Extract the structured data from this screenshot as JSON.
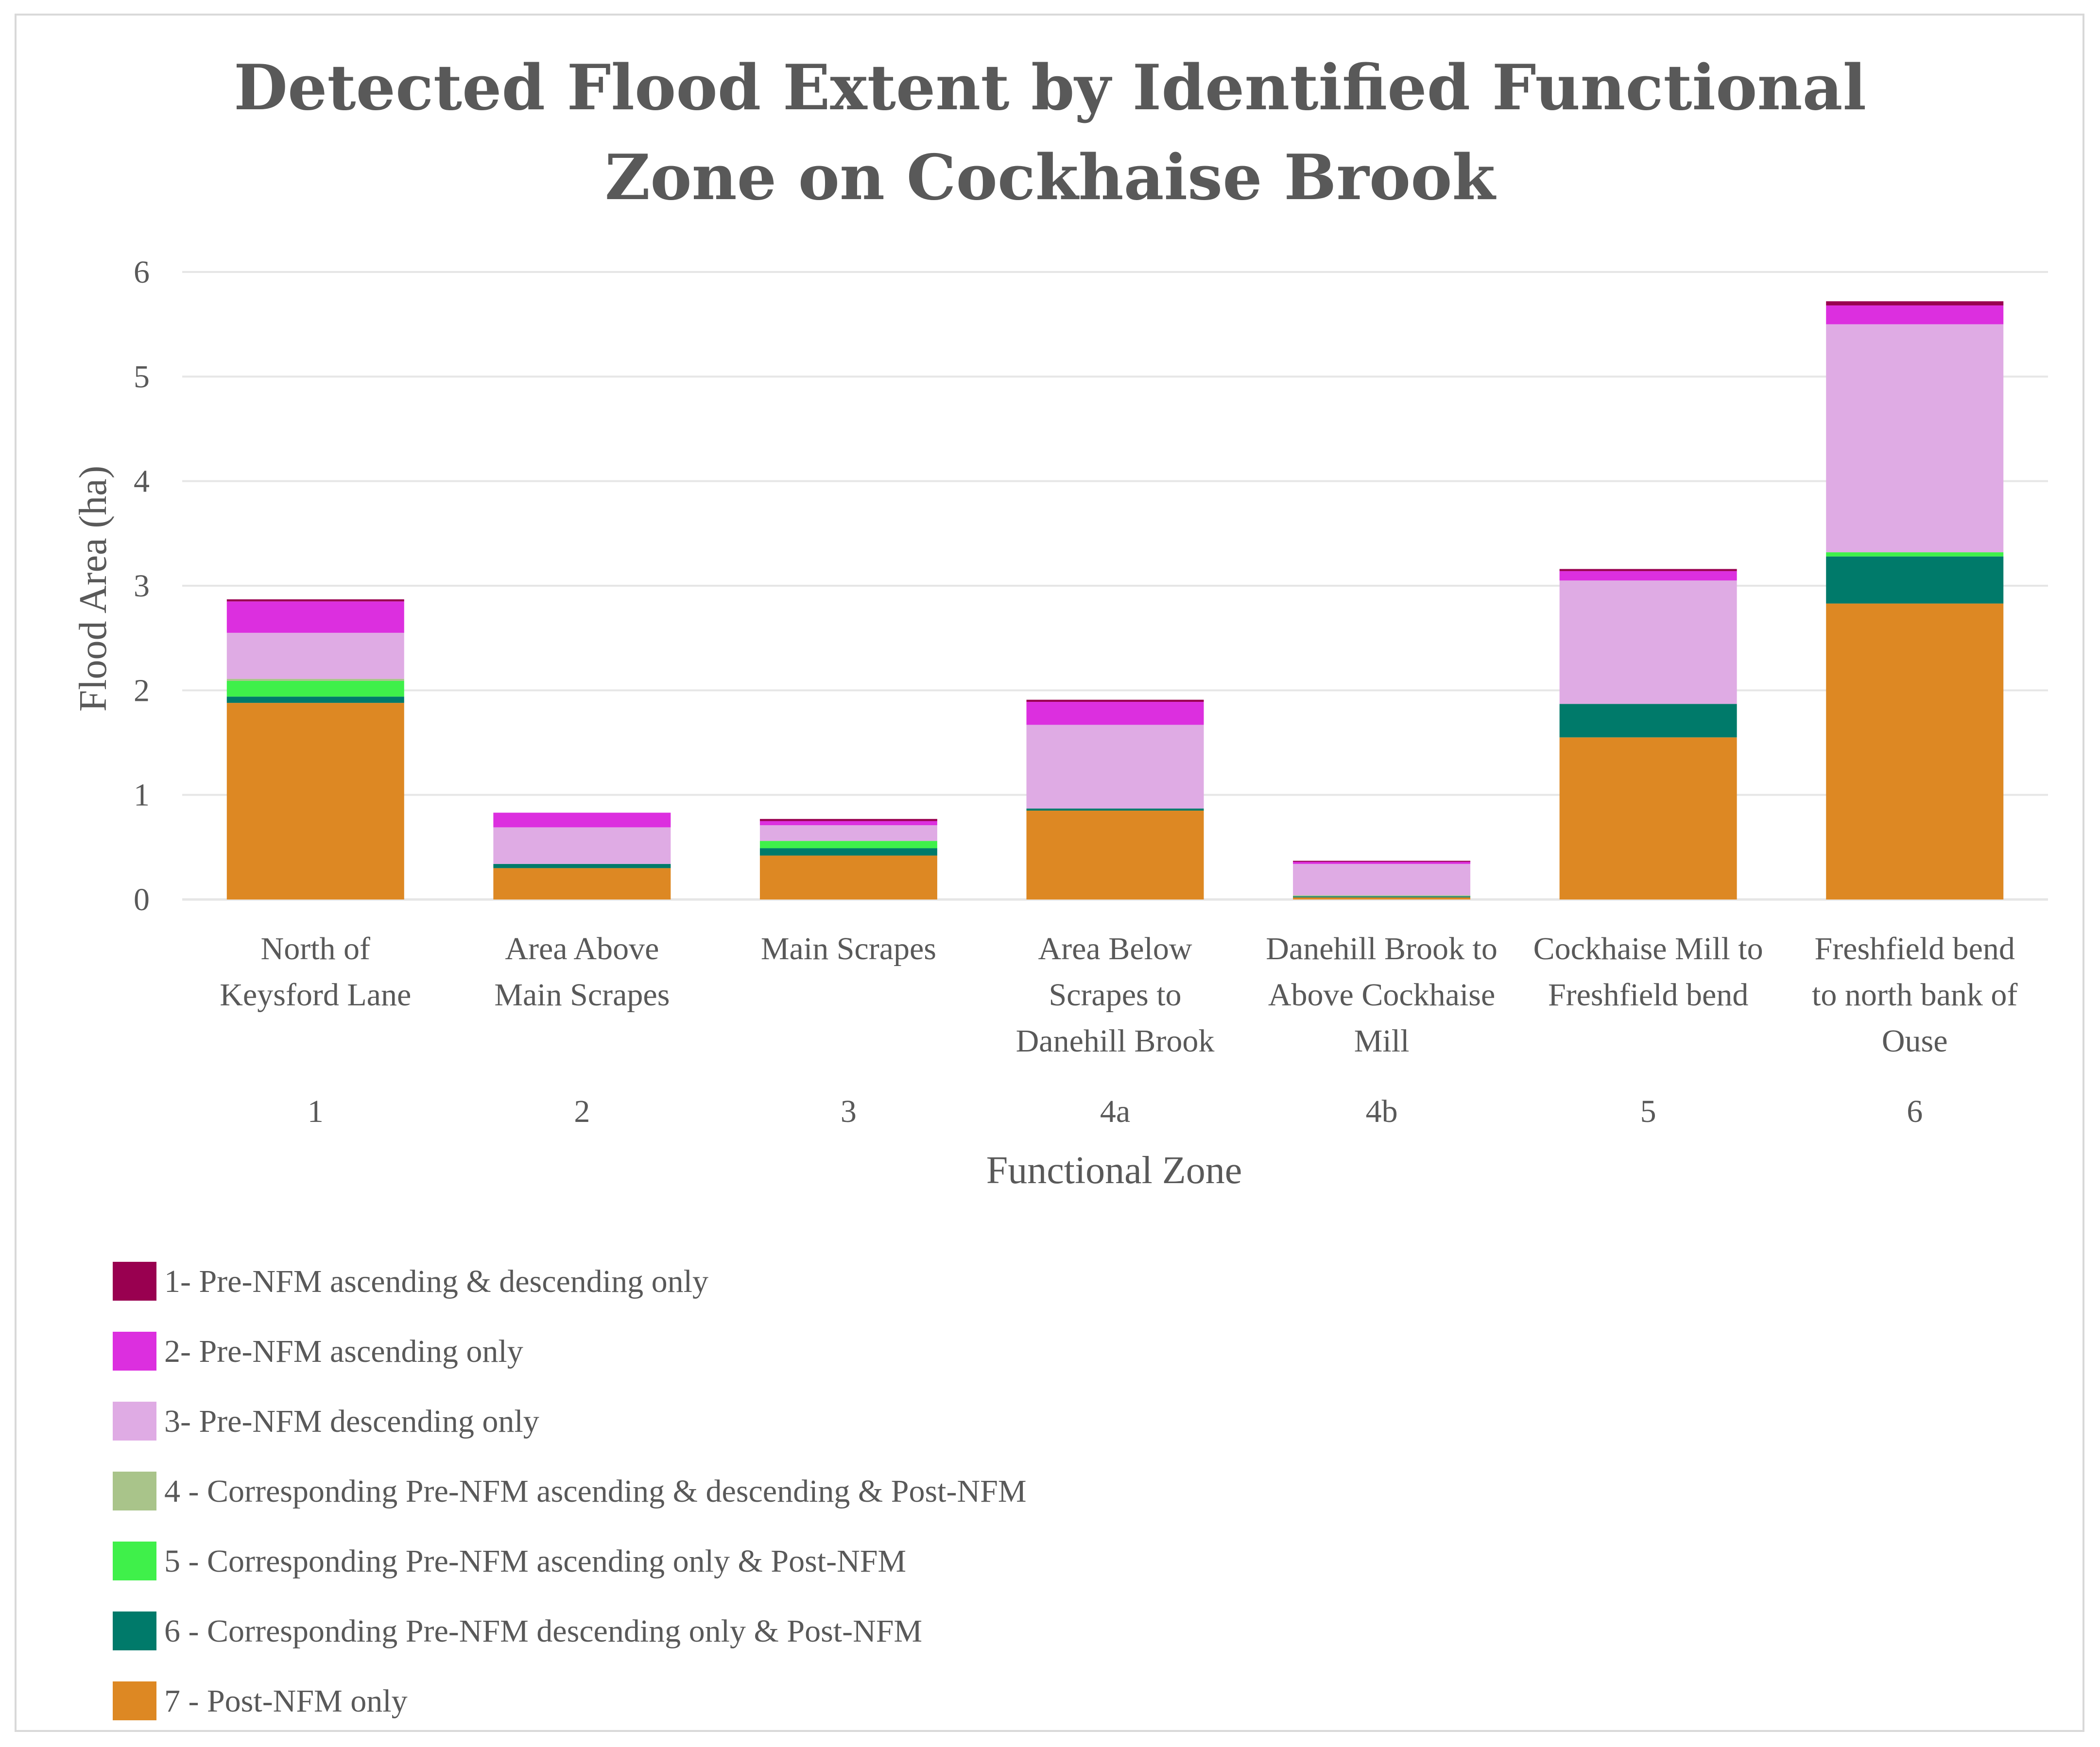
{
  "chart_data": {
    "type": "bar",
    "stacked": true,
    "title_lines": [
      "Detected Flood Extent by Identified Functional",
      "Zone on Cockhaise Brook"
    ],
    "xlabel": "Functional Zone",
    "ylabel": "Flood Area (ha)",
    "ylim": [
      0,
      6
    ],
    "yticks": [
      "0",
      "1",
      "2",
      "3",
      "4",
      "5",
      "6"
    ],
    "grid": true,
    "legend_position": "bottom",
    "categories": [
      {
        "code": "1",
        "name_lines": [
          "North of",
          "Keysford Lane"
        ]
      },
      {
        "code": "2",
        "name_lines": [
          "Area Above",
          "Main Scrapes"
        ]
      },
      {
        "code": "3",
        "name_lines": [
          "Main Scrapes"
        ]
      },
      {
        "code": "4a",
        "name_lines": [
          "Area Below",
          "Scrapes to",
          "Danehill Brook"
        ]
      },
      {
        "code": "4b",
        "name_lines": [
          "Danehill Brook to",
          "Above Cockhaise",
          "Mill"
        ]
      },
      {
        "code": "5",
        "name_lines": [
          "Cockhaise Mill to",
          "Freshfield bend"
        ]
      },
      {
        "code": "6",
        "name_lines": [
          "Freshfield bend",
          "to north bank of",
          "Ouse"
        ]
      }
    ],
    "series": [
      {
        "name": "7 - Post-NFM only",
        "color": "#dd8823",
        "values": [
          1.88,
          0.3,
          0.42,
          0.85,
          0.02,
          1.55,
          2.83
        ]
      },
      {
        "name": "6 - Corresponding Pre-NFM descending only & Post-NFM",
        "color": "#007a6a",
        "values": [
          0.06,
          0.04,
          0.07,
          0.02,
          0.01,
          0.32,
          0.45
        ]
      },
      {
        "name": "5 - Corresponding Pre-NFM ascending only & Post-NFM",
        "color": "#3ff04a",
        "values": [
          0.15,
          0.0,
          0.07,
          0.0,
          0.0,
          0.0,
          0.04
        ]
      },
      {
        "name": "4 - Corresponding Pre-NFM ascending & descending & Post-NFM",
        "color": "#a9c48a",
        "values": [
          0.02,
          0.0,
          0.0,
          0.0,
          0.01,
          0.0,
          0.0
        ]
      },
      {
        "name": "3- Pre-NFM descending only",
        "color": "#dfabe4",
        "values": [
          0.44,
          0.35,
          0.15,
          0.8,
          0.3,
          1.18,
          2.18
        ]
      },
      {
        "name": "2- Pre-NFM ascending only",
        "color": "#dc2fdf",
        "values": [
          0.3,
          0.14,
          0.04,
          0.22,
          0.02,
          0.09,
          0.18
        ]
      },
      {
        "name": "1- Pre-NFM ascending & descending only",
        "color": "#990050",
        "values": [
          0.02,
          0.0,
          0.02,
          0.02,
          0.01,
          0.02,
          0.04
        ]
      }
    ],
    "legend_order": [
      "1- Pre-NFM ascending & descending only",
      "2- Pre-NFM ascending only",
      "3- Pre-NFM descending only",
      "4 - Corresponding Pre-NFM ascending & descending & Post-NFM",
      "5 - Corresponding Pre-NFM ascending only & Post-NFM",
      "6 - Corresponding Pre-NFM descending only & Post-NFM",
      "7 - Post-NFM only"
    ],
    "colors": {
      "gridline": "#e6e6e6",
      "text": "#595959",
      "border": "#d9d9d9"
    }
  }
}
